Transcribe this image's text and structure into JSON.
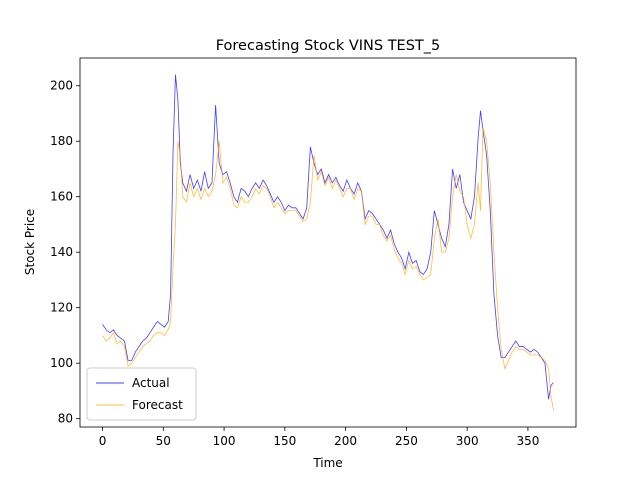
{
  "chart_data": {
    "type": "line",
    "title": "Forecasting Stock VINS TEST_5",
    "x_label": "Time",
    "y_label": "Stock Price",
    "x": [
      0,
      3,
      6,
      9,
      12,
      15,
      18,
      21,
      24,
      27,
      30,
      33,
      36,
      39,
      42,
      45,
      48,
      51,
      54,
      56,
      58,
      60,
      62,
      64,
      66,
      69,
      72,
      75,
      78,
      81,
      84,
      87,
      90,
      93,
      96,
      99,
      102,
      105,
      108,
      111,
      114,
      117,
      120,
      123,
      126,
      129,
      132,
      135,
      138,
      141,
      144,
      147,
      150,
      153,
      156,
      159,
      162,
      165,
      168,
      171,
      174,
      177,
      180,
      183,
      186,
      189,
      192,
      195,
      198,
      201,
      204,
      207,
      210,
      213,
      216,
      219,
      222,
      225,
      228,
      231,
      234,
      237,
      240,
      243,
      246,
      249,
      252,
      255,
      258,
      261,
      264,
      267,
      270,
      273,
      276,
      279,
      282,
      285,
      288,
      291,
      294,
      297,
      300,
      303,
      306,
      309,
      311,
      313,
      316,
      319,
      322,
      325,
      328,
      331,
      334,
      337,
      340,
      343,
      346,
      349,
      352,
      355,
      358,
      361,
      364,
      367,
      369,
      371
    ],
    "series": [
      {
        "name": "Actual",
        "color": "#0000ff",
        "values": [
          114,
          112,
          111,
          112,
          110,
          109,
          108,
          101,
          101,
          104,
          106,
          108,
          109,
          111,
          113,
          115,
          114,
          113,
          115,
          125,
          176,
          204,
          195,
          172,
          165,
          162,
          168,
          163,
          166,
          162,
          169,
          163,
          165,
          193,
          172,
          168,
          169,
          165,
          160,
          158,
          163,
          162,
          160,
          163,
          165,
          163,
          166,
          164,
          161,
          158,
          160,
          158,
          155,
          157,
          156,
          156,
          154,
          152,
          156,
          178,
          172,
          168,
          170,
          165,
          168,
          165,
          167,
          164,
          162,
          166,
          163,
          161,
          165,
          162,
          152,
          155,
          154,
          152,
          150,
          148,
          145,
          148,
          143,
          140,
          138,
          134,
          140,
          136,
          137,
          133,
          132,
          134,
          140,
          155,
          150,
          145,
          142,
          150,
          170,
          163,
          168,
          158,
          155,
          152,
          160,
          181,
          191,
          184,
          175,
          155,
          125,
          110,
          102,
          102,
          104,
          106,
          108,
          106,
          106,
          105,
          104,
          105,
          104,
          102,
          100,
          87,
          92,
          93
        ]
      },
      {
        "name": "Forecast",
        "color": "#ffa500",
        "values": [
          110,
          108,
          109,
          111,
          107,
          108,
          106,
          99,
          100,
          102,
          104,
          106,
          107,
          108,
          110,
          111,
          111,
          110,
          112,
          115,
          135,
          150,
          180,
          175,
          160,
          158,
          165,
          160,
          163,
          159,
          163,
          160,
          162,
          168,
          180,
          165,
          167,
          163,
          157,
          156,
          160,
          158,
          158,
          160,
          163,
          161,
          164,
          163,
          160,
          156,
          158,
          156,
          154,
          155,
          155,
          155,
          153,
          151,
          152,
          158,
          175,
          166,
          169,
          164,
          167,
          163,
          166,
          163,
          160,
          163,
          163,
          159,
          163,
          162,
          150,
          153,
          153,
          150,
          150,
          146,
          144,
          146,
          141,
          138,
          136,
          132,
          137,
          134,
          135,
          132,
          130,
          131,
          132,
          145,
          152,
          140,
          140,
          145,
          160,
          168,
          162,
          160,
          150,
          145,
          150,
          165,
          155,
          185,
          180,
          165,
          140,
          120,
          105,
          98,
          101,
          104,
          106,
          105,
          105,
          104,
          103,
          103,
          103,
          102,
          101,
          98,
          88,
          83
        ]
      }
    ],
    "xlim": [
      -18.55,
      389.55
    ],
    "ylim": [
      77,
      210
    ],
    "xticks": [
      0,
      50,
      100,
      150,
      200,
      250,
      300,
      350
    ],
    "yticks": [
      80,
      100,
      120,
      140,
      160,
      180,
      200
    ],
    "legend": "lower left"
  }
}
